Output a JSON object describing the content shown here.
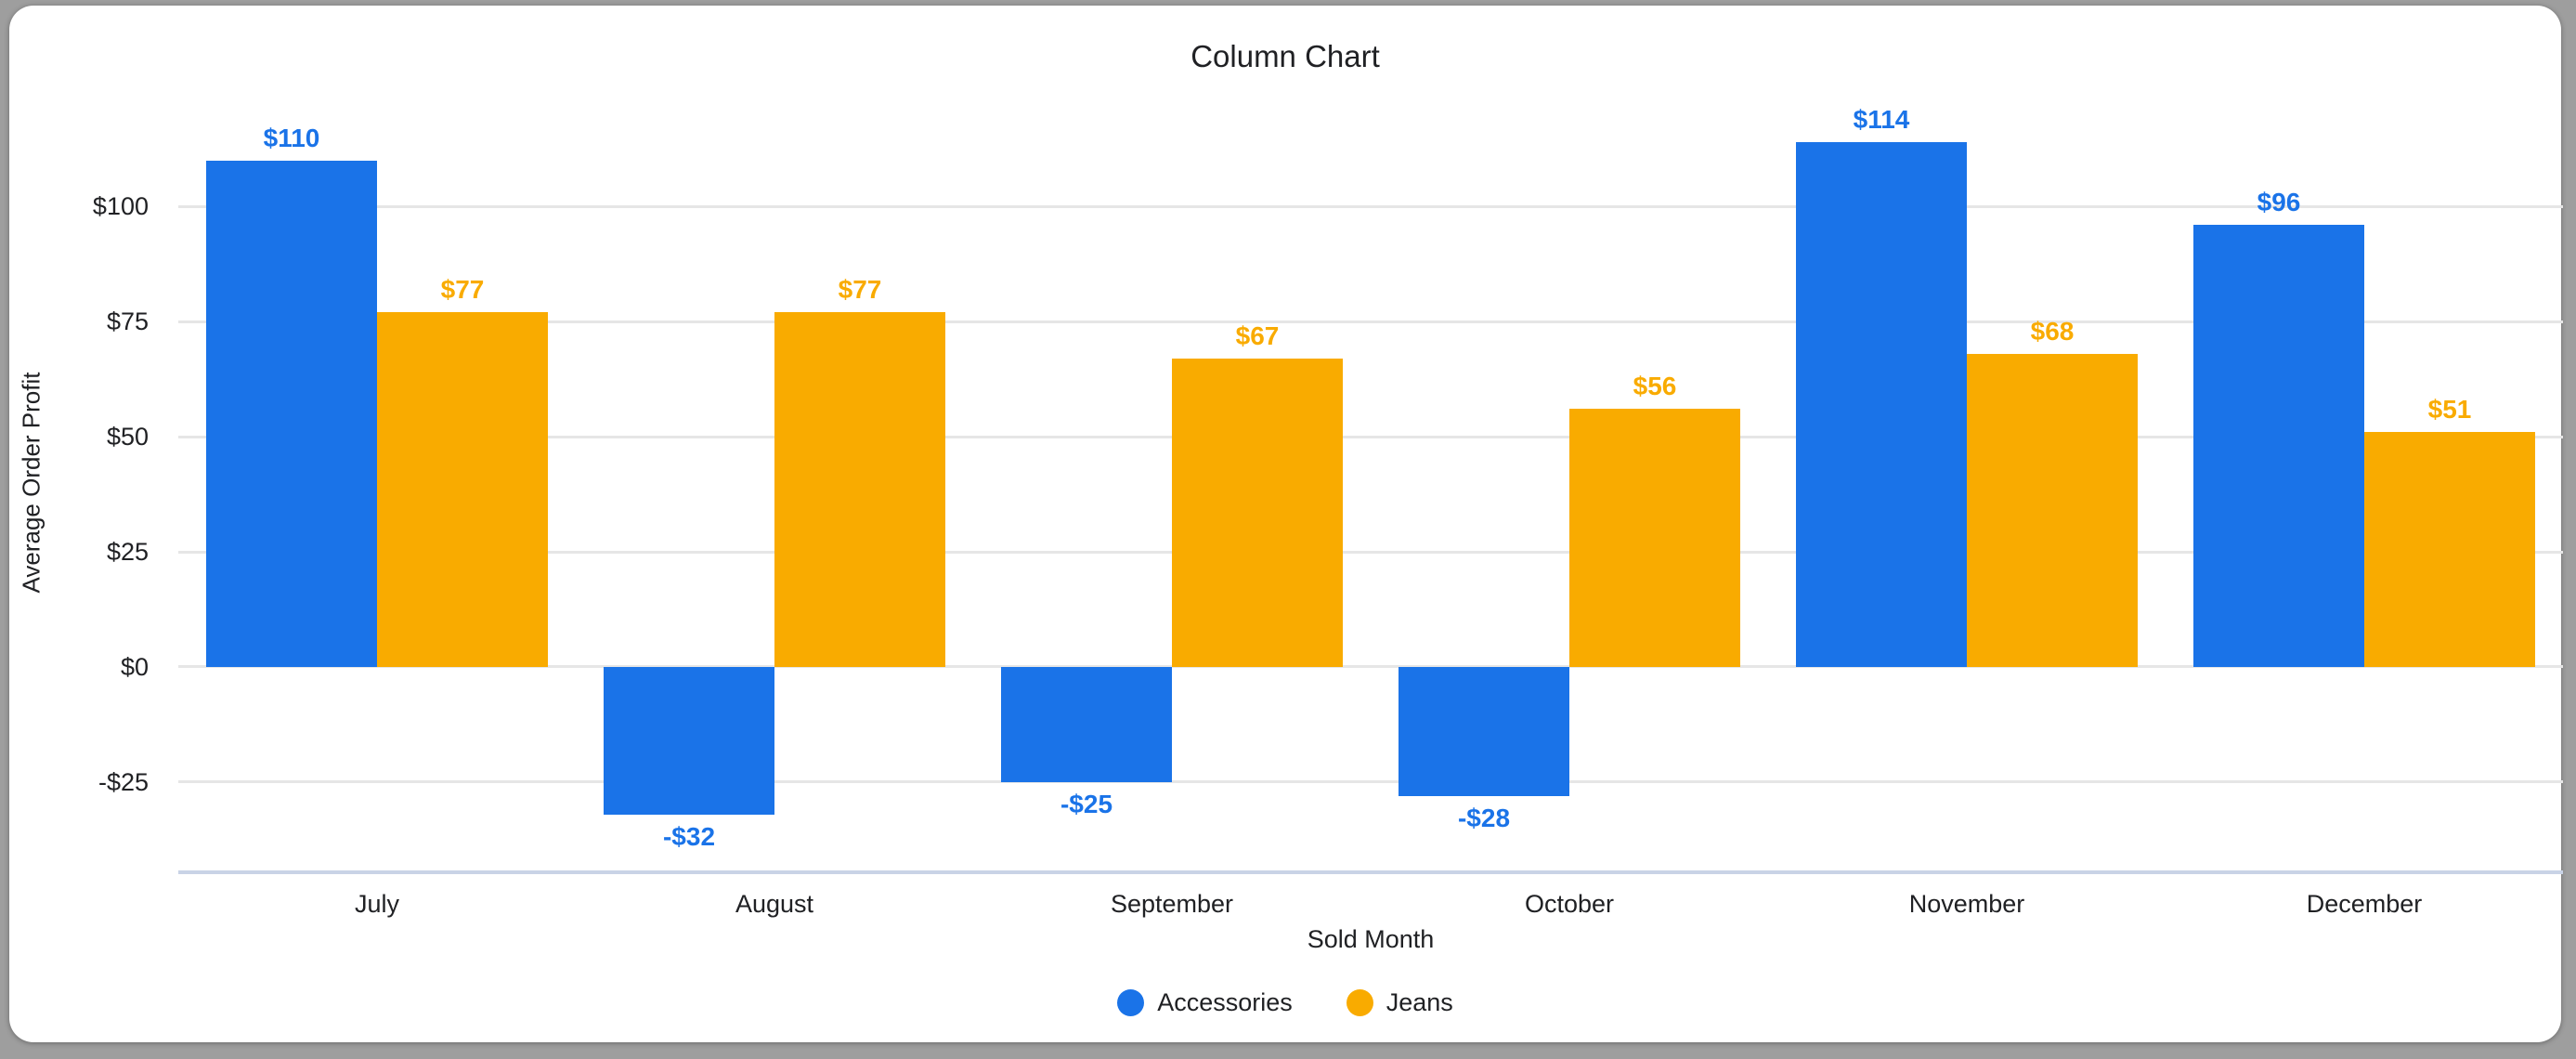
{
  "window": {
    "title": "Column Chart"
  },
  "colors": {
    "outer_background": "#9e9e9e",
    "card_background": "#ffffff",
    "title_text": "#202124",
    "axis_text": "#202124",
    "gridline": "#e6e6e6",
    "baseline": "#c9d3e6",
    "accessories_blue": "#1a73e8",
    "jeans_orange": "#f9ab00"
  },
  "chart_data": {
    "type": "bar",
    "title": "Column Chart",
    "xlabel": "Sold Month",
    "ylabel": "Average Order Profit",
    "categories": [
      "July",
      "August",
      "September",
      "October",
      "November",
      "December"
    ],
    "series": [
      {
        "name": "Accessories",
        "color": "#1a73e8",
        "values": [
          110,
          -32,
          -25,
          -28,
          114,
          96
        ],
        "labels": [
          "$110",
          "-$32",
          "-$25",
          "-$28",
          "$114",
          "$96"
        ]
      },
      {
        "name": "Jeans",
        "color": "#f9ab00",
        "values": [
          77,
          77,
          67,
          56,
          68,
          51
        ],
        "labels": [
          "$77",
          "$77",
          "$67",
          "$56",
          "$68",
          "$51"
        ]
      }
    ],
    "y_ticks": [
      {
        "value": 100,
        "label": "$100"
      },
      {
        "value": 75,
        "label": "$75"
      },
      {
        "value": 50,
        "label": "$50"
      },
      {
        "value": 25,
        "label": "$25"
      },
      {
        "value": 0,
        "label": "$0"
      },
      {
        "value": -25,
        "label": "-$25"
      }
    ],
    "ylim": [
      -44.6,
      127.7
    ],
    "grid": true,
    "legend_position": "bottom"
  }
}
